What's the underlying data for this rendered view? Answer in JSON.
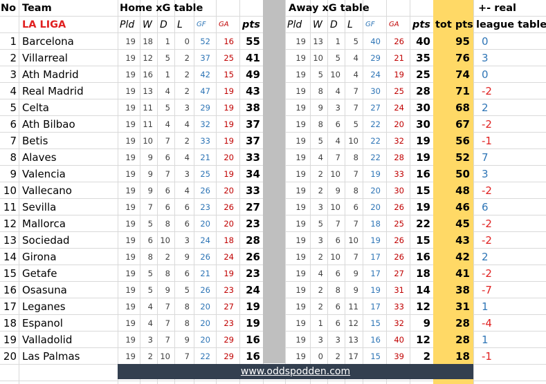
{
  "colors": {
    "tot_pts_fill": "#ffd966",
    "separator_fill": "#bfbfbf",
    "footer_fill": "#333f4f",
    "league_label": "#e02020",
    "gf": "#2e75b6",
    "ga": "#c00000",
    "diff_pos": "#2e75b6",
    "diff_neg": "#e02020"
  },
  "headers": {
    "no": "No",
    "team": "Team",
    "league": "LA LIGA",
    "home_title": "Home xG table",
    "away_title": "Away xG table",
    "tot_pts": "tot pts",
    "diff_line1": "+- real",
    "diff_line2": "league table",
    "pld": "Pld",
    "w": "W",
    "d": "D",
    "l": "L",
    "gf": "GF",
    "ga": "GA",
    "pts": "pts"
  },
  "rows": [
    {
      "no": "1",
      "team": "Barcelona",
      "h": [
        "19",
        "18",
        "1",
        "0",
        "52",
        "16",
        "55"
      ],
      "a": [
        "19",
        "13",
        "1",
        "5",
        "40",
        "26",
        "40"
      ],
      "tot": "95",
      "diff": "0"
    },
    {
      "no": "2",
      "team": "Villarreal",
      "h": [
        "19",
        "12",
        "5",
        "2",
        "37",
        "25",
        "41"
      ],
      "a": [
        "19",
        "10",
        "5",
        "4",
        "29",
        "21",
        "35"
      ],
      "tot": "76",
      "diff": "3"
    },
    {
      "no": "3",
      "team": "Ath Madrid",
      "h": [
        "19",
        "16",
        "1",
        "2",
        "42",
        "15",
        "49"
      ],
      "a": [
        "19",
        "5",
        "10",
        "4",
        "24",
        "19",
        "25"
      ],
      "tot": "74",
      "diff": "0"
    },
    {
      "no": "4",
      "team": "Real Madrid",
      "h": [
        "19",
        "13",
        "4",
        "2",
        "47",
        "19",
        "43"
      ],
      "a": [
        "19",
        "8",
        "4",
        "7",
        "30",
        "25",
        "28"
      ],
      "tot": "71",
      "diff": "-2"
    },
    {
      "no": "5",
      "team": "Celta",
      "h": [
        "19",
        "11",
        "5",
        "3",
        "29",
        "19",
        "38"
      ],
      "a": [
        "19",
        "9",
        "3",
        "7",
        "27",
        "24",
        "30"
      ],
      "tot": "68",
      "diff": "2"
    },
    {
      "no": "6",
      "team": "Ath Bilbao",
      "h": [
        "19",
        "11",
        "4",
        "4",
        "32",
        "19",
        "37"
      ],
      "a": [
        "19",
        "8",
        "6",
        "5",
        "22",
        "20",
        "30"
      ],
      "tot": "67",
      "diff": "-2"
    },
    {
      "no": "7",
      "team": "Betis",
      "h": [
        "19",
        "10",
        "7",
        "2",
        "33",
        "19",
        "37"
      ],
      "a": [
        "19",
        "5",
        "4",
        "10",
        "22",
        "32",
        "19"
      ],
      "tot": "56",
      "diff": "-1"
    },
    {
      "no": "8",
      "team": "Alaves",
      "h": [
        "19",
        "9",
        "6",
        "4",
        "21",
        "20",
        "33"
      ],
      "a": [
        "19",
        "4",
        "7",
        "8",
        "22",
        "28",
        "19"
      ],
      "tot": "52",
      "diff": "7"
    },
    {
      "no": "9",
      "team": "Valencia",
      "h": [
        "19",
        "9",
        "7",
        "3",
        "25",
        "19",
        "34"
      ],
      "a": [
        "19",
        "2",
        "10",
        "7",
        "19",
        "33",
        "16"
      ],
      "tot": "50",
      "diff": "3"
    },
    {
      "no": "10",
      "team": "Vallecano",
      "h": [
        "19",
        "9",
        "6",
        "4",
        "26",
        "20",
        "33"
      ],
      "a": [
        "19",
        "2",
        "9",
        "8",
        "20",
        "30",
        "15"
      ],
      "tot": "48",
      "diff": "-2"
    },
    {
      "no": "11",
      "team": "Sevilla",
      "h": [
        "19",
        "7",
        "6",
        "6",
        "23",
        "26",
        "27"
      ],
      "a": [
        "19",
        "3",
        "10",
        "6",
        "20",
        "26",
        "19"
      ],
      "tot": "46",
      "diff": "6"
    },
    {
      "no": "12",
      "team": "Mallorca",
      "h": [
        "19",
        "5",
        "8",
        "6",
        "20",
        "20",
        "23"
      ],
      "a": [
        "19",
        "5",
        "7",
        "7",
        "18",
        "25",
        "22"
      ],
      "tot": "45",
      "diff": "-2"
    },
    {
      "no": "13",
      "team": "Sociedad",
      "h": [
        "19",
        "6",
        "10",
        "3",
        "24",
        "18",
        "28"
      ],
      "a": [
        "19",
        "3",
        "6",
        "10",
        "19",
        "26",
        "15"
      ],
      "tot": "43",
      "diff": "-2"
    },
    {
      "no": "14",
      "team": "Girona",
      "h": [
        "19",
        "8",
        "2",
        "9",
        "26",
        "24",
        "26"
      ],
      "a": [
        "19",
        "2",
        "10",
        "7",
        "17",
        "26",
        "16"
      ],
      "tot": "42",
      "diff": "2"
    },
    {
      "no": "15",
      "team": "Getafe",
      "h": [
        "19",
        "5",
        "8",
        "6",
        "21",
        "19",
        "23"
      ],
      "a": [
        "19",
        "4",
        "6",
        "9",
        "17",
        "27",
        "18"
      ],
      "tot": "41",
      "diff": "-2"
    },
    {
      "no": "16",
      "team": "Osasuna",
      "h": [
        "19",
        "5",
        "9",
        "5",
        "26",
        "23",
        "24"
      ],
      "a": [
        "19",
        "2",
        "8",
        "9",
        "19",
        "31",
        "14"
      ],
      "tot": "38",
      "diff": "-7"
    },
    {
      "no": "17",
      "team": "Leganes",
      "h": [
        "19",
        "4",
        "7",
        "8",
        "20",
        "27",
        "19"
      ],
      "a": [
        "19",
        "2",
        "6",
        "11",
        "17",
        "33",
        "12"
      ],
      "tot": "31",
      "diff": "1"
    },
    {
      "no": "18",
      "team": "Espanol",
      "h": [
        "19",
        "4",
        "7",
        "8",
        "20",
        "23",
        "19"
      ],
      "a": [
        "19",
        "1",
        "6",
        "12",
        "15",
        "32",
        "9"
      ],
      "tot": "28",
      "diff": "-4"
    },
    {
      "no": "19",
      "team": "Valladolid",
      "h": [
        "19",
        "3",
        "7",
        "9",
        "20",
        "29",
        "16"
      ],
      "a": [
        "19",
        "3",
        "3",
        "13",
        "16",
        "40",
        "12"
      ],
      "tot": "28",
      "diff": "1"
    },
    {
      "no": "20",
      "team": "Las Palmas",
      "h": [
        "19",
        "2",
        "10",
        "7",
        "22",
        "29",
        "16"
      ],
      "a": [
        "19",
        "0",
        "2",
        "17",
        "15",
        "39",
        "2"
      ],
      "tot": "18",
      "diff": "-1"
    }
  ],
  "footer": "www.oddspodden.com"
}
